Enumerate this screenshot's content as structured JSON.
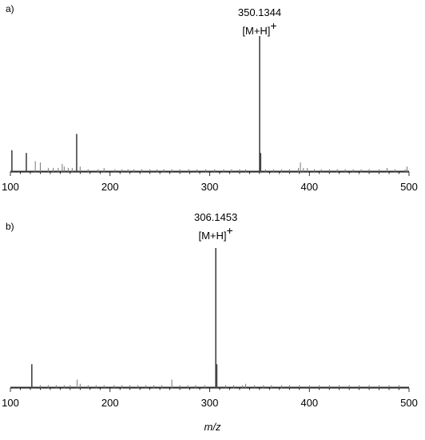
{
  "chart_data": [
    {
      "type": "bar",
      "panel_label": "a)",
      "xlim": [
        100,
        500
      ],
      "x_ticks": [
        100,
        200,
        300,
        400,
        500
      ],
      "y_max": 100,
      "peak_label": "350.1344",
      "ion_label": "[M+H]",
      "ion_charge": "+",
      "series": [
        {
          "x": [
            101.5,
            116,
            125,
            130,
            138,
            143,
            148,
            152,
            154,
            158,
            162,
            166.5,
            170,
            178,
            188,
            194,
            205,
            212,
            218,
            224,
            232,
            240,
            247,
            254,
            262,
            270,
            279,
            287,
            296,
            305,
            314,
            322,
            330,
            336,
            350.1,
            351.1,
            356,
            364,
            372,
            380,
            389,
            391,
            394,
            398,
            405,
            412,
            420,
            428,
            436,
            444,
            452,
            460,
            470,
            478,
            486,
            496,
            498
          ],
          "values": [
            16,
            14,
            8,
            7,
            3,
            3,
            3,
            6,
            4,
            3,
            3,
            28,
            4,
            2,
            2,
            3,
            2,
            2,
            2,
            2,
            2,
            2,
            2,
            2,
            2,
            2,
            2,
            2,
            2,
            2,
            2,
            2,
            2,
            2,
            100,
            14,
            2,
            2,
            2,
            2,
            3,
            7,
            3,
            3,
            2,
            2,
            2,
            2,
            2,
            2,
            2,
            2,
            2,
            3,
            2,
            2,
            4
          ]
        }
      ]
    },
    {
      "type": "bar",
      "panel_label": "b)",
      "xlim": [
        100,
        500
      ],
      "x_ticks": [
        100,
        200,
        300,
        400,
        500
      ],
      "y_max": 100,
      "peak_label": "306.1453",
      "ion_label": "[M+H]",
      "ion_charge": "+",
      "series": [
        {
          "x": [
            121.5,
            130,
            138,
            146,
            154,
            160,
            167,
            170,
            178,
            186,
            194,
            204,
            212,
            220,
            228,
            236,
            244,
            252,
            262,
            270,
            278,
            286,
            295,
            306.1,
            307.1,
            316,
            324,
            333,
            336,
            345,
            354,
            362,
            372,
            380,
            390,
            400,
            410,
            420,
            430,
            440,
            450,
            460,
            470,
            480,
            490
          ],
          "values": [
            17,
            2,
            2,
            2,
            2,
            2,
            6,
            3,
            2,
            2,
            2,
            2,
            2,
            2,
            2,
            2,
            2,
            2,
            6,
            2,
            2,
            2,
            2,
            100,
            17,
            2,
            2,
            2,
            3,
            2,
            2,
            2,
            2,
            2,
            2,
            2,
            2,
            2,
            2,
            2,
            2,
            2,
            2,
            2,
            2
          ]
        }
      ]
    }
  ],
  "xlabel": "m/z"
}
